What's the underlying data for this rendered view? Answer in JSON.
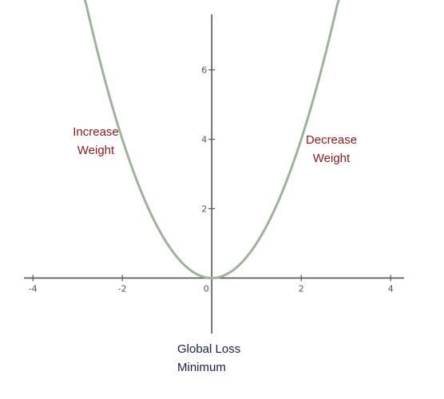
{
  "chart_data": {
    "type": "line",
    "function": "y = x^2",
    "x": [
      -3,
      -2.5,
      -2,
      -1.5,
      -1,
      -0.5,
      0,
      0.5,
      1,
      1.5,
      2,
      2.5,
      3
    ],
    "y": [
      9,
      6.25,
      4,
      2.25,
      1,
      0.25,
      0,
      0.25,
      1,
      2.25,
      4,
      6.25,
      9
    ],
    "xlim": [
      -4.2,
      4.3
    ],
    "ylim": [
      -1.6,
      7.6
    ],
    "x_ticks": [
      -4,
      -2,
      0,
      2,
      4
    ],
    "x_tick_labels": [
      "-4",
      "-2",
      "0",
      "2",
      "4"
    ],
    "y_ticks": [
      2,
      4,
      6
    ],
    "y_tick_labels": [
      "2",
      "4",
      "6"
    ],
    "grid": false,
    "curve_color": "#9fb39b",
    "axis_color": "#555555",
    "annotations": {
      "increase": {
        "line1": "Increase",
        "line2": "Weight",
        "color": "#8b1a1a"
      },
      "decrease": {
        "line1": "Decrease",
        "line2": "Weight",
        "color": "#8b1a1a"
      },
      "minimum": {
        "line1": "Global Loss",
        "line2": "Minimum",
        "color": "#1a1f4a"
      }
    }
  }
}
